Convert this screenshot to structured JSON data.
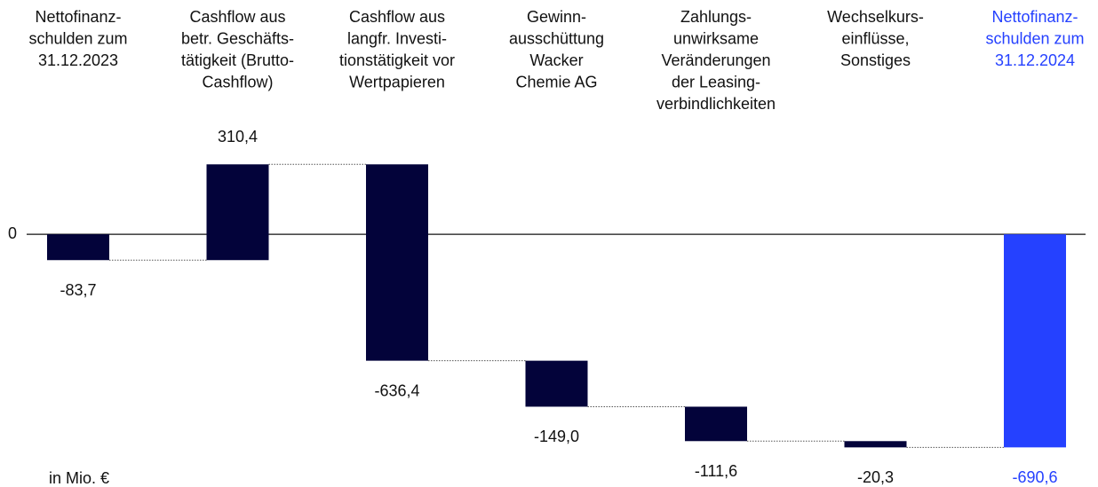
{
  "chart_data": {
    "type": "waterfall",
    "categories": [
      [
        "Nettofinanz-",
        "schulden zum",
        "31.12.2023"
      ],
      [
        "Cashflow aus",
        "betr. Geschäfts-",
        "tätigkeit (Brutto-",
        "Cashflow)"
      ],
      [
        "Cashflow aus",
        "langfr. Investi-",
        "tionstätigkeit vor",
        "Wertpapieren"
      ],
      [
        "Gewinn-",
        "ausschüttung",
        "Wacker",
        "Chemie AG"
      ],
      [
        "Zahlungs-",
        "unwirksame",
        "Veränderungen",
        "der Leasing-",
        "verbindlichkeiten"
      ],
      [
        "Wechselkurs-",
        "einflüsse,",
        "Sonstiges"
      ],
      [
        "Nettofinanz-",
        "schulden zum",
        "31.12.2024"
      ]
    ],
    "values": [
      -83.7,
      310.4,
      -636.4,
      -149.0,
      -111.6,
      -20.3,
      -690.6
    ],
    "value_labels": [
      "-83,7",
      "310,4",
      "-636,4",
      "-149,0",
      "-111,6",
      "-20,3",
      "-690,6"
    ],
    "measure": [
      "relative",
      "relative",
      "relative",
      "relative",
      "relative",
      "relative",
      "total"
    ],
    "color": "#03033a",
    "total_color": "#2541ff",
    "ylim": [
      -750,
      400
    ],
    "yticks": [
      0
    ],
    "unit_label": "in Mio. €"
  }
}
